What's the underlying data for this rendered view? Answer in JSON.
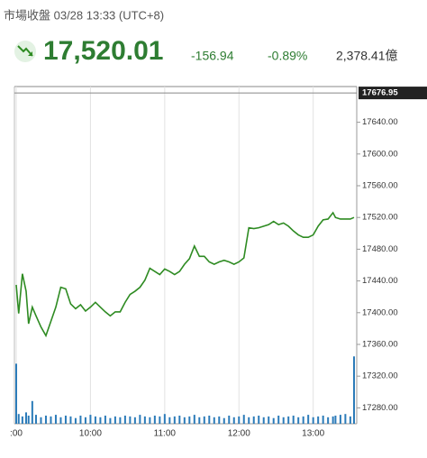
{
  "header": {
    "status": "市場收盤 03/28 13:33 (UTC+8)",
    "price": "17,520.01",
    "change": "-156.94",
    "change_pct": "-0.89%",
    "turnover": "2,378.41億"
  },
  "chart_data": {
    "type": "line",
    "x": [
      0,
      2,
      5,
      8,
      10,
      13,
      16,
      20,
      24,
      28,
      32,
      36,
      40,
      44,
      48,
      52,
      56,
      60,
      64,
      68,
      72,
      76,
      80,
      84,
      88,
      92,
      96,
      100,
      104,
      108,
      112,
      116,
      120,
      124,
      128,
      132,
      136,
      140,
      144,
      148,
      152,
      156,
      160,
      164,
      168,
      172,
      176,
      180,
      184,
      188,
      192,
      196,
      200,
      204,
      208,
      212,
      216,
      220,
      224,
      228,
      232,
      236,
      240,
      244,
      248,
      252,
      256,
      258,
      262,
      266,
      270,
      273
    ],
    "series": [
      {
        "color": "#2e8b22",
        "values": [
          17435,
          17399,
          17449,
          17427,
          17386,
          17407,
          17396,
          17382,
          17371,
          17389,
          17407,
          17432,
          17430,
          17411,
          17405,
          17410,
          17402,
          17407,
          17413,
          17407,
          17401,
          17396,
          17401,
          17401,
          17413,
          17423,
          17427,
          17432,
          17441,
          17456,
          17452,
          17448,
          17455,
          17452,
          17448,
          17452,
          17461,
          17468,
          17484,
          17471,
          17471,
          17464,
          17461,
          17464,
          17466,
          17464,
          17461,
          17464,
          17469,
          17507,
          17506,
          17507,
          17509,
          17511,
          17515,
          17511,
          17513,
          17509,
          17503,
          17498,
          17495,
          17495,
          17498,
          17509,
          17517,
          17518,
          17526,
          17520,
          17518,
          17518,
          17518,
          17520.01
        ]
      },
      {
        "type": "bar",
        "axis": "y2",
        "color": "#2b7bb9",
        "values": [
          74,
          12,
          9,
          14,
          10,
          28,
          11,
          8,
          10,
          9,
          11,
          8,
          10,
          9,
          7,
          10,
          8,
          11,
          9,
          8,
          10,
          7,
          9,
          8,
          10,
          9,
          8,
          11,
          9,
          8,
          10,
          9,
          12,
          8,
          9,
          10,
          8,
          9,
          11,
          8,
          9,
          10,
          8,
          9,
          7,
          10,
          8,
          9,
          11,
          8,
          9,
          10,
          8,
          9,
          7,
          10,
          8,
          9,
          10,
          8,
          9,
          11,
          8,
          9,
          10,
          8,
          9,
          10,
          11,
          12,
          9,
          83
        ]
      }
    ],
    "xlim": [
      0,
      273
    ],
    "xticks": [
      {
        "value": 0,
        "label": ":00"
      },
      {
        "value": 60,
        "label": "10:00"
      },
      {
        "value": 120,
        "label": "11:00"
      },
      {
        "value": 180,
        "label": "12:00"
      },
      {
        "value": 240,
        "label": "13:00"
      }
    ],
    "ylim": [
      17260,
      17685
    ],
    "yticks": [
      {
        "value": 17280,
        "label": "17280.00"
      },
      {
        "value": 17320,
        "label": "17320.00"
      },
      {
        "value": 17360,
        "label": "17360.00"
      },
      {
        "value": 17400,
        "label": "17400.00"
      },
      {
        "value": 17440,
        "label": "17440.00"
      },
      {
        "value": 17480,
        "label": "17480.00"
      },
      {
        "value": 17520,
        "label": "17520.00"
      },
      {
        "value": 17560,
        "label": "17560.00"
      },
      {
        "value": 17600,
        "label": "17600.00"
      },
      {
        "value": 17640,
        "label": "17640.00"
      }
    ],
    "reference": 17676.95,
    "y2lim": [
      0,
      100
    ],
    "grid": "x"
  }
}
